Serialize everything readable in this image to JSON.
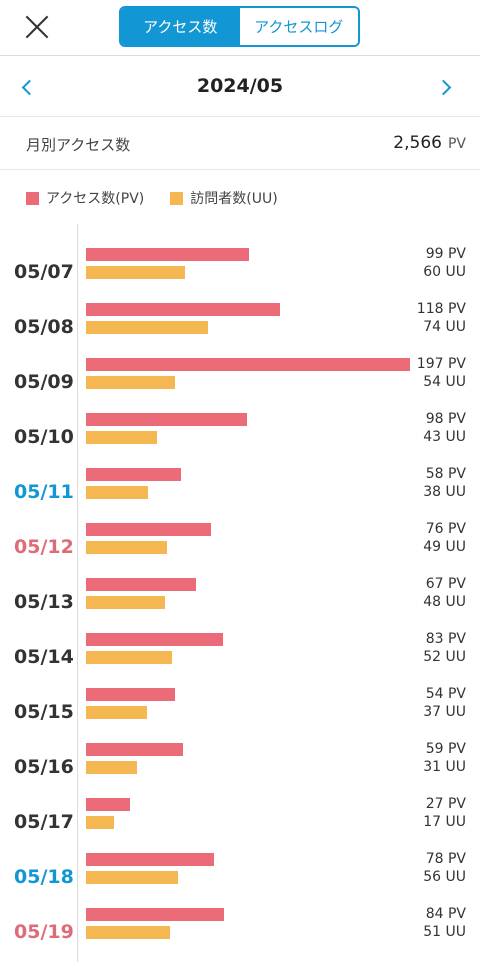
{
  "header": {
    "tabs": [
      {
        "label": "アクセス数",
        "active": true
      },
      {
        "label": "アクセスログ",
        "active": false
      }
    ]
  },
  "month": {
    "title": "2024/05"
  },
  "summary": {
    "label": "月別アクセス数",
    "value": "2,566",
    "unit": "PV"
  },
  "legend": {
    "pv_label": "アクセス数(PV)",
    "uu_label": "訪問者数(UU)"
  },
  "colors": {
    "accent": "#1396d4",
    "pv": "#ec6b79",
    "uu": "#f5b751",
    "saturday": "#1396d4",
    "sunday": "#e06b78"
  },
  "chart_data": {
    "type": "bar",
    "categories": [
      "05/07",
      "05/08",
      "05/09",
      "05/10",
      "05/11",
      "05/12",
      "05/13",
      "05/14",
      "05/15",
      "05/16",
      "05/17",
      "05/18",
      "05/19"
    ],
    "series": [
      {
        "name": "アクセス数(PV)",
        "unit": "PV",
        "values": [
          99,
          118,
          197,
          98,
          58,
          76,
          67,
          83,
          54,
          59,
          27,
          78,
          84
        ]
      },
      {
        "name": "訪問者数(UU)",
        "unit": "UU",
        "values": [
          60,
          74,
          54,
          43,
          38,
          49,
          48,
          52,
          37,
          31,
          17,
          56,
          51
        ]
      }
    ],
    "day_type": [
      "weekday",
      "weekday",
      "weekday",
      "weekday",
      "sat",
      "sun",
      "weekday",
      "weekday",
      "weekday",
      "weekday",
      "weekday",
      "sat",
      "sun"
    ],
    "xlim": [
      0,
      197
    ]
  }
}
